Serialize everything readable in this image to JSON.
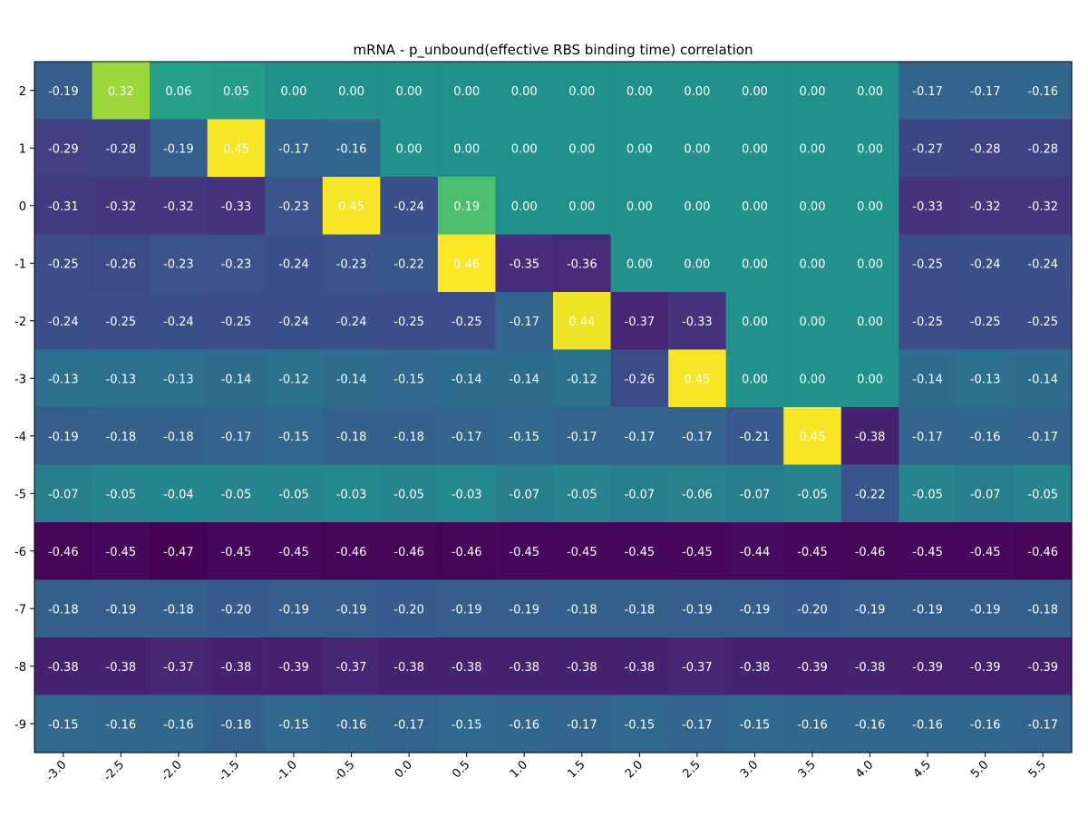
{
  "chart_data": {
    "type": "heatmap",
    "title": "mRNA - p_unbound(effective RBS binding time) correlation",
    "xlabel": "",
    "ylabel": "",
    "x_labels": [
      "-3.0",
      "-2.5",
      "-2.0",
      "-1.5",
      "-1.0",
      "-0.5",
      "0.0",
      "0.5",
      "1.0",
      "1.5",
      "2.0",
      "2.5",
      "3.0",
      "3.5",
      "4.0",
      "4.5",
      "5.0",
      "5.5"
    ],
    "y_labels": [
      "2",
      "1",
      "0",
      "-1",
      "-2",
      "-3",
      "-4",
      "-5",
      "-6",
      "-7",
      "-8",
      "-9"
    ],
    "vmin": -0.47,
    "vmax": 0.46,
    "colormap": "viridis",
    "grid": false,
    "values": [
      [
        -0.19,
        0.32,
        0.06,
        0.05,
        0.0,
        0.0,
        0.0,
        0.0,
        0.0,
        0.0,
        0.0,
        0.0,
        0.0,
        0.0,
        0.0,
        -0.17,
        -0.17,
        -0.16
      ],
      [
        -0.29,
        -0.28,
        -0.19,
        0.45,
        -0.17,
        -0.16,
        0.0,
        0.0,
        0.0,
        0.0,
        0.0,
        0.0,
        0.0,
        0.0,
        0.0,
        -0.27,
        -0.28,
        -0.28
      ],
      [
        -0.31,
        -0.32,
        -0.32,
        -0.33,
        -0.23,
        0.45,
        -0.24,
        0.19,
        0.0,
        0.0,
        0.0,
        0.0,
        0.0,
        0.0,
        0.0,
        -0.33,
        -0.32,
        -0.32
      ],
      [
        -0.25,
        -0.26,
        -0.23,
        -0.23,
        -0.24,
        -0.23,
        -0.22,
        0.46,
        -0.35,
        -0.36,
        0.0,
        0.0,
        0.0,
        0.0,
        0.0,
        -0.25,
        -0.24,
        -0.24
      ],
      [
        -0.24,
        -0.25,
        -0.24,
        -0.25,
        -0.24,
        -0.24,
        -0.25,
        -0.25,
        -0.17,
        0.44,
        -0.37,
        -0.33,
        0.0,
        0.0,
        0.0,
        -0.25,
        -0.25,
        -0.25
      ],
      [
        -0.13,
        -0.13,
        -0.13,
        -0.14,
        -0.12,
        -0.14,
        -0.15,
        -0.14,
        -0.14,
        -0.12,
        -0.26,
        0.45,
        0.0,
        0.0,
        0.0,
        -0.14,
        -0.13,
        -0.14
      ],
      [
        -0.19,
        -0.18,
        -0.18,
        -0.17,
        -0.15,
        -0.18,
        -0.18,
        -0.17,
        -0.15,
        -0.17,
        -0.17,
        -0.17,
        -0.21,
        0.45,
        -0.38,
        -0.17,
        -0.16,
        -0.17
      ],
      [
        -0.07,
        -0.05,
        -0.04,
        -0.05,
        -0.05,
        -0.03,
        -0.05,
        -0.03,
        -0.07,
        -0.05,
        -0.07,
        -0.06,
        -0.07,
        -0.05,
        -0.22,
        -0.05,
        -0.07,
        -0.05
      ],
      [
        -0.46,
        -0.45,
        -0.47,
        -0.45,
        -0.45,
        -0.46,
        -0.46,
        -0.46,
        -0.45,
        -0.45,
        -0.45,
        -0.45,
        -0.44,
        -0.45,
        -0.46,
        -0.45,
        -0.45,
        -0.46
      ],
      [
        -0.18,
        -0.19,
        -0.18,
        -0.2,
        -0.19,
        -0.19,
        -0.2,
        -0.19,
        -0.19,
        -0.18,
        -0.18,
        -0.19,
        -0.19,
        -0.2,
        -0.19,
        -0.19,
        -0.19,
        -0.18
      ],
      [
        -0.38,
        -0.38,
        -0.37,
        -0.38,
        -0.39,
        -0.37,
        -0.38,
        -0.38,
        -0.38,
        -0.38,
        -0.38,
        -0.37,
        -0.38,
        -0.39,
        -0.38,
        -0.39,
        -0.39,
        -0.39
      ],
      [
        -0.15,
        -0.16,
        -0.16,
        -0.18,
        -0.15,
        -0.16,
        -0.17,
        -0.15,
        -0.16,
        -0.17,
        -0.15,
        -0.17,
        -0.15,
        -0.16,
        -0.16,
        -0.16,
        -0.16,
        -0.17
      ]
    ]
  }
}
